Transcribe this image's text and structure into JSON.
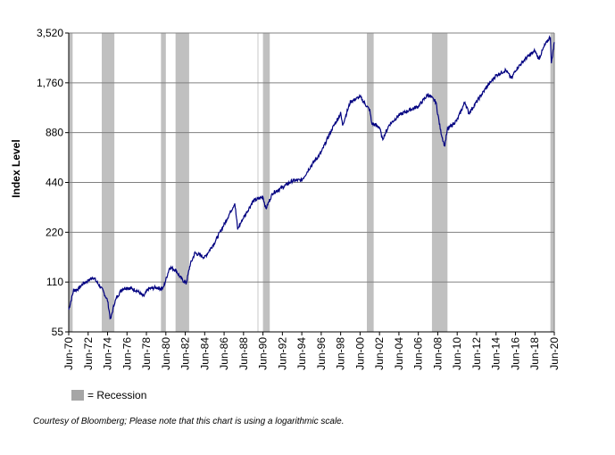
{
  "chart_data": {
    "type": "line",
    "title": "",
    "xlabel": "",
    "ylabel": "Index Level",
    "yscale": "log",
    "ylim": [
      55,
      3520
    ],
    "yticks": [
      55,
      110,
      220,
      440,
      880,
      1760,
      3520
    ],
    "ytick_labels": [
      "55",
      "110",
      "220",
      "440",
      "880",
      "1,760",
      "3,520"
    ],
    "xlim": [
      1970.5,
      2020.5
    ],
    "xtick_labels": [
      "Jun-70",
      "Jun-72",
      "Jun-74",
      "Jun-76",
      "Jun-78",
      "Jun-80",
      "Jun-82",
      "Jun-84",
      "Jun-86",
      "Jun-88",
      "Jun-90",
      "Jun-92",
      "Jun-94",
      "Jun-96",
      "Jun-98",
      "Jun-00",
      "Jun-02",
      "Jun-04",
      "Jun-06",
      "Jun-08",
      "Jun-10",
      "Jun-12",
      "Jun-14",
      "Jun-16",
      "Jun-18",
      "Jun-20"
    ],
    "grid": true,
    "series": [
      {
        "name": "Index Level",
        "color": "#000080",
        "x": [
          1970.5,
          1971,
          1971.5,
          1972,
          1972.5,
          1973,
          1973.5,
          1974,
          1974.5,
          1974.8,
          1975.2,
          1975.5,
          1976,
          1976.5,
          1977,
          1977.5,
          1978.2,
          1978.7,
          1979.5,
          1980.2,
          1980.9,
          1981.5,
          1982.1,
          1982.6,
          1983,
          1983.5,
          1984.5,
          1985.5,
          1986.5,
          1987.6,
          1987.9,
          1988.5,
          1989.5,
          1990.5,
          1990.8,
          1991.5,
          1992.5,
          1993.5,
          1994.5,
          1995.5,
          1996.5,
          1997.5,
          1998.5,
          1998.7,
          1999.5,
          2000.5,
          2001.5,
          2001.7,
          2002.5,
          2002.8,
          2003.5,
          2004.5,
          2005.5,
          2006.5,
          2007.5,
          2008.3,
          2008.8,
          2009.2,
          2009.5,
          2010.5,
          2011.3,
          2011.7,
          2012.5,
          2013.5,
          2014.5,
          2015.5,
          2016.1,
          2016.5,
          2017.5,
          2018.5,
          2018.9,
          2019.5,
          2020.1,
          2020.2,
          2020.5
        ],
        "y": [
          75,
          98,
          100,
          108,
          112,
          118,
          108,
          98,
          85,
          65,
          82,
          90,
          100,
          102,
          100,
          98,
          90,
          100,
          102,
          100,
          135,
          130,
          115,
          108,
          140,
          165,
          155,
          190,
          245,
          330,
          230,
          270,
          340,
          360,
          305,
          380,
          410,
          450,
          455,
          560,
          670,
          900,
          1150,
          980,
          1350,
          1450,
          1200,
          1000,
          950,
          800,
          980,
          1120,
          1200,
          1270,
          1500,
          1350,
          900,
          730,
          920,
          1050,
          1350,
          1150,
          1350,
          1650,
          1950,
          2100,
          1870,
          2100,
          2450,
          2750,
          2450,
          2950,
          3350,
          2300,
          3100
        ]
      }
    ],
    "recessions": [
      [
        1969.9,
        1970.9
      ],
      [
        1973.9,
        1975.2
      ],
      [
        1980.0,
        1980.5
      ],
      [
        1981.5,
        1982.9
      ],
      [
        1990.5,
        1991.2
      ],
      [
        2001.2,
        2001.9
      ],
      [
        2007.9,
        2009.5
      ],
      [
        2020.1,
        2020.5
      ]
    ],
    "legend": {
      "label": "= Recession",
      "color": "#a6a6a6",
      "placement": "bottom-left"
    },
    "annotation": "Courtesy of Bloomberg; Please note that this chart is using a logarithmic scale."
  }
}
